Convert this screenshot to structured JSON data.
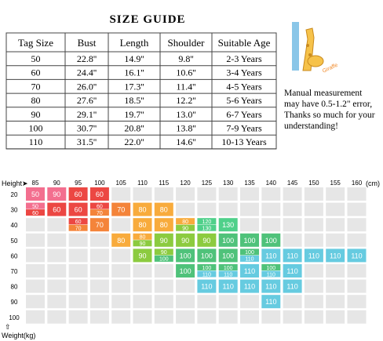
{
  "title": "SIZE GUIDE",
  "table": {
    "header": [
      "Tag Size",
      "Bust",
      "Length",
      "Shoulder",
      "Suitable Age"
    ],
    "rows": [
      [
        "50",
        "22.8''",
        "14.9''",
        "9.8''",
        "2-3 Years"
      ],
      [
        "60",
        "24.4''",
        "16.1''",
        "10.6''",
        "3-4 Years"
      ],
      [
        "70",
        "26.0''",
        "17.3''",
        "11.4''",
        "4-5 Years"
      ],
      [
        "80",
        "27.6''",
        "18.5''",
        "12.2''",
        "5-6 Years"
      ],
      [
        "90",
        "29.1''",
        "19.7''",
        "13.0''",
        "6-7 Years"
      ],
      [
        "100",
        "30.7''",
        "20.8''",
        "13.8''",
        "7-9 Years"
      ],
      [
        "110",
        "31.5''",
        "22.0''",
        "14.6''",
        "10-13 Years"
      ]
    ]
  },
  "note": [
    "Manual measurement",
    "may have 0.5-1.2\" error,",
    "Thanks so much for your",
    "understanding!"
  ],
  "giraffe_text": "Giraffe",
  "chart": {
    "height_label": "Height➤",
    "unit": "(cm)",
    "weight_label": "Weight(kg)",
    "arrow": "⇧",
    "heights": [
      "85",
      "90",
      "95",
      "100",
      "105",
      "110",
      "115",
      "120",
      "125",
      "130",
      "135",
      "140",
      "145",
      "150",
      "155",
      "160"
    ],
    "rows": [
      {
        "weight": "20",
        "cells": [
          [
            {
              "t": "50",
              "c": "#f36f8f"
            }
          ],
          [
            {
              "t": "90",
              "c": "#f36f8f"
            }
          ],
          [
            {
              "t": "60",
              "c": "#ec4743"
            }
          ],
          [
            {
              "t": "60",
              "c": "#ec4743"
            }
          ],
          null,
          null,
          null,
          null,
          null,
          null,
          null,
          null,
          null,
          null,
          null,
          null
        ]
      },
      {
        "weight": "30",
        "cells": [
          [
            {
              "t": "50",
              "c": "#f36f8f"
            },
            {
              "t": "60",
              "c": "#ec4743"
            }
          ],
          [
            {
              "t": "60",
              "c": "#ec4743"
            }
          ],
          [
            {
              "t": "60",
              "c": "#ec4743"
            }
          ],
          [
            {
              "t": "60",
              "c": "#ec4743"
            },
            {
              "t": "70",
              "c": "#f4843a"
            }
          ],
          [
            {
              "t": "70",
              "c": "#f4843a"
            }
          ],
          [
            {
              "t": "80",
              "c": "#f8ab3c"
            }
          ],
          [
            {
              "t": "80",
              "c": "#f8ab3c"
            }
          ],
          null,
          null,
          null,
          null,
          null,
          null,
          null,
          null,
          null
        ]
      },
      {
        "weight": "40",
        "cells": [
          null,
          null,
          [
            {
              "t": "60",
              "c": "#ec4743"
            },
            {
              "t": "70",
              "c": "#f4843a"
            }
          ],
          [
            {
              "t": "70",
              "c": "#f4843a"
            }
          ],
          null,
          [
            {
              "t": "80",
              "c": "#f8ab3c"
            }
          ],
          [
            {
              "t": "80",
              "c": "#f8ab3c"
            }
          ],
          [
            {
              "t": "80",
              "c": "#f8ab3c"
            },
            {
              "t": "90",
              "c": "#8ccb3f"
            }
          ],
          [
            {
              "t": "120",
              "c": "#4fd08a"
            },
            {
              "t": "130",
              "c": "#4fd08a"
            }
          ],
          [
            {
              "t": "130",
              "c": "#4fd08a"
            }
          ],
          null,
          null,
          null,
          null,
          null,
          null
        ]
      },
      {
        "weight": "50",
        "cells": [
          null,
          null,
          null,
          null,
          [
            {
              "t": "80",
              "c": "#f8ab3c"
            }
          ],
          [
            {
              "t": "80",
              "c": "#f8ab3c"
            },
            {
              "t": "90",
              "c": "#8ccb3f"
            }
          ],
          [
            {
              "t": "90",
              "c": "#8ccb3f"
            }
          ],
          [
            {
              "t": "90",
              "c": "#8ccb3f"
            }
          ],
          [
            {
              "t": "90",
              "c": "#8ccb3f"
            }
          ],
          [
            {
              "t": "100",
              "c": "#4fc27a"
            }
          ],
          [
            {
              "t": "100",
              "c": "#4fc27a"
            }
          ],
          [
            {
              "t": "100",
              "c": "#4fc27a"
            }
          ],
          null,
          null,
          null,
          null
        ]
      },
      {
        "weight": "60",
        "cells": [
          null,
          null,
          null,
          null,
          null,
          [
            {
              "t": "90",
              "c": "#8ccb3f"
            }
          ],
          [
            {
              "t": "90",
              "c": "#8ccb3f"
            },
            {
              "t": "100",
              "c": "#4fc27a"
            }
          ],
          [
            {
              "t": "100",
              "c": "#4fc27a"
            }
          ],
          [
            {
              "t": "100",
              "c": "#4fc27a"
            }
          ],
          [
            {
              "t": "100",
              "c": "#4fc27a"
            }
          ],
          [
            {
              "t": "100",
              "c": "#4fc27a"
            },
            {
              "t": "110",
              "c": "#66cbe0"
            }
          ],
          [
            {
              "t": "110",
              "c": "#66cbe0"
            }
          ],
          [
            {
              "t": "110",
              "c": "#66cbe0"
            }
          ],
          [
            {
              "t": "110",
              "c": "#66cbe0"
            }
          ],
          [
            {
              "t": "110",
              "c": "#66cbe0"
            }
          ],
          [
            {
              "t": "110",
              "c": "#66cbe0"
            }
          ]
        ]
      },
      {
        "weight": "70",
        "cells": [
          null,
          null,
          null,
          null,
          null,
          null,
          null,
          [
            {
              "t": "100",
              "c": "#4fc27a"
            }
          ],
          [
            {
              "t": "100",
              "c": "#4fc27a"
            },
            {
              "t": "110",
              "c": "#66cbe0"
            }
          ],
          [
            {
              "t": "100",
              "c": "#4fc27a"
            },
            {
              "t": "110",
              "c": "#66cbe0"
            }
          ],
          [
            {
              "t": "110",
              "c": "#66cbe0"
            }
          ],
          [
            {
              "t": "100",
              "c": "#4fc27a"
            },
            {
              "t": "110",
              "c": "#66cbe0"
            }
          ],
          [
            {
              "t": "110",
              "c": "#66cbe0"
            }
          ],
          null,
          null,
          null
        ]
      },
      {
        "weight": "80",
        "cells": [
          null,
          null,
          null,
          null,
          null,
          null,
          null,
          null,
          [
            {
              "t": "110",
              "c": "#66cbe0"
            }
          ],
          [
            {
              "t": "110",
              "c": "#66cbe0"
            }
          ],
          [
            {
              "t": "110",
              "c": "#66cbe0"
            }
          ],
          [
            {
              "t": "110",
              "c": "#66cbe0"
            }
          ],
          [
            {
              "t": "110",
              "c": "#66cbe0"
            }
          ],
          null,
          null,
          null
        ]
      },
      {
        "weight": "90",
        "cells": [
          null,
          null,
          null,
          null,
          null,
          null,
          null,
          null,
          null,
          null,
          null,
          [
            {
              "t": "110",
              "c": "#66cbe0"
            }
          ],
          null,
          null,
          null,
          null
        ]
      },
      {
        "weight": "100",
        "cells": [
          null,
          null,
          null,
          null,
          null,
          null,
          null,
          null,
          null,
          null,
          null,
          null,
          null,
          null,
          null,
          null
        ]
      }
    ]
  }
}
